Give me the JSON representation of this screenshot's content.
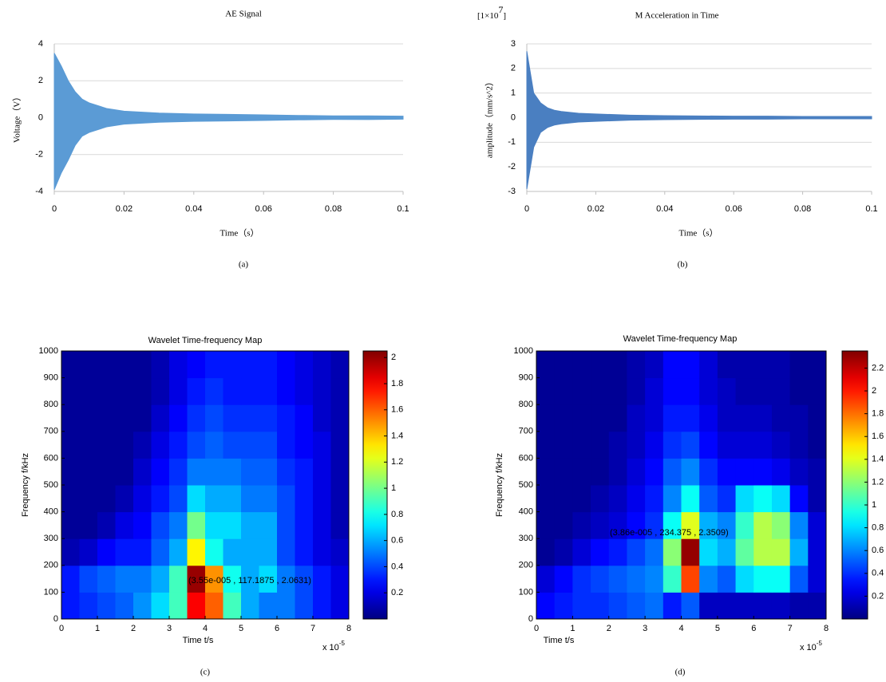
{
  "chart_data": [
    {
      "type": "area",
      "title": "AE Signal",
      "xlabel": "Time（s）",
      "ylabel": "Voltage（V）",
      "caption": "(a)",
      "color": "#5b9bd5",
      "x": [
        0,
        0.002,
        0.004,
        0.006,
        0.008,
        0.01,
        0.015,
        0.02,
        0.03,
        0.04,
        0.05,
        0.06,
        0.07,
        0.08,
        0.09,
        0.1
      ],
      "series": [
        {
          "values": [
            3.5,
            2.8,
            2.0,
            1.4,
            1.0,
            0.8,
            0.5,
            0.35,
            0.25,
            0.2,
            0.18,
            0.15,
            0.12,
            0.1,
            0.1,
            0.08
          ]
        },
        {
          "values": [
            -3.9,
            -3.0,
            -2.3,
            -1.5,
            -1.0,
            -0.8,
            -0.5,
            -0.35,
            -0.25,
            -0.2,
            -0.18,
            -0.15,
            -0.12,
            -0.1,
            -0.1,
            -0.08
          ]
        }
      ],
      "xlim": [
        0,
        0.1
      ],
      "ylim": [
        -4,
        4
      ],
      "xticks": [
        0,
        0.02,
        0.04,
        0.06,
        0.08,
        0.1
      ],
      "yticks": [
        -4,
        -2,
        0,
        2,
        4
      ],
      "grid": true
    },
    {
      "type": "area",
      "title": "M Acceleration  in Time",
      "xlabel": "Time（s）",
      "ylabel": "amplitude（mm/s^2）",
      "caption": "(b)",
      "color": "#4a7fc1",
      "y_multiplier": {
        "base": "[1×10",
        "exponent": "7",
        "suffix": "]"
      },
      "x": [
        0,
        0.002,
        0.004,
        0.006,
        0.008,
        0.01,
        0.015,
        0.02,
        0.03,
        0.04,
        0.05,
        0.06,
        0.07,
        0.08,
        0.09,
        0.1
      ],
      "series": [
        {
          "values": [
            2.7,
            1.0,
            0.6,
            0.4,
            0.3,
            0.25,
            0.18,
            0.15,
            0.1,
            0.08,
            0.07,
            0.06,
            0.06,
            0.05,
            0.05,
            0.05
          ]
        },
        {
          "values": [
            -2.9,
            -1.2,
            -0.6,
            -0.4,
            -0.3,
            -0.25,
            -0.18,
            -0.15,
            -0.1,
            -0.08,
            -0.07,
            -0.06,
            -0.06,
            -0.05,
            -0.05,
            -0.05
          ]
        }
      ],
      "xlim": [
        0,
        0.1
      ],
      "ylim": [
        -3,
        3
      ],
      "xticks": [
        0,
        0.02,
        0.04,
        0.06,
        0.08,
        0.1
      ],
      "yticks": [
        -3,
        -2,
        -1,
        0,
        1,
        2,
        3
      ],
      "grid": true
    },
    {
      "type": "heatmap",
      "title": "Wavelet Time-frequency Map",
      "xlabel": "Time t/s",
      "ylabel": "Frequency f/kHz",
      "caption": "(c)",
      "x_multiplier": {
        "base": "x 10",
        "exponent": "-5"
      },
      "annotation": "(3.55e-005 , 117.1875 , 2.0631)",
      "colormap": "jet",
      "x_bins": [
        0,
        0.5,
        1,
        1.5,
        2,
        2.5,
        3,
        3.5,
        4,
        4.5,
        5,
        5.5,
        6,
        6.5,
        7,
        7.5,
        8
      ],
      "y_bins": [
        0,
        100,
        200,
        300,
        400,
        500,
        600,
        700,
        800,
        900,
        1000
      ],
      "z": [
        [
          0.3,
          0.35,
          0.4,
          0.45,
          0.55,
          0.7,
          0.9,
          1.8,
          1.6,
          0.9,
          0.6,
          0.5,
          0.5,
          0.4,
          0.3,
          0.2
        ],
        [
          0.3,
          0.4,
          0.45,
          0.5,
          0.5,
          0.6,
          0.9,
          2.0,
          1.5,
          0.8,
          0.6,
          0.7,
          0.5,
          0.4,
          0.3,
          0.2
        ],
        [
          0.1,
          0.15,
          0.25,
          0.3,
          0.3,
          0.45,
          0.6,
          1.3,
          0.8,
          0.6,
          0.6,
          0.6,
          0.4,
          0.3,
          0.2,
          0.15
        ],
        [
          0.05,
          0.05,
          0.1,
          0.2,
          0.25,
          0.4,
          0.5,
          1.0,
          0.7,
          0.7,
          0.6,
          0.6,
          0.4,
          0.3,
          0.2,
          0.1
        ],
        [
          0.05,
          0.05,
          0.05,
          0.1,
          0.2,
          0.3,
          0.4,
          0.7,
          0.6,
          0.6,
          0.5,
          0.5,
          0.4,
          0.3,
          0.2,
          0.1
        ],
        [
          0.05,
          0.05,
          0.05,
          0.05,
          0.15,
          0.25,
          0.35,
          0.5,
          0.5,
          0.5,
          0.45,
          0.45,
          0.35,
          0.3,
          0.2,
          0.1
        ],
        [
          0.05,
          0.05,
          0.05,
          0.05,
          0.1,
          0.2,
          0.3,
          0.4,
          0.45,
          0.4,
          0.4,
          0.4,
          0.3,
          0.25,
          0.2,
          0.1
        ],
        [
          0.05,
          0.05,
          0.05,
          0.05,
          0.05,
          0.15,
          0.25,
          0.35,
          0.4,
          0.35,
          0.35,
          0.35,
          0.3,
          0.25,
          0.15,
          0.1
        ],
        [
          0.05,
          0.05,
          0.05,
          0.05,
          0.05,
          0.1,
          0.2,
          0.3,
          0.35,
          0.3,
          0.3,
          0.3,
          0.25,
          0.2,
          0.15,
          0.1
        ],
        [
          0.05,
          0.05,
          0.05,
          0.05,
          0.05,
          0.1,
          0.2,
          0.25,
          0.3,
          0.3,
          0.3,
          0.3,
          0.25,
          0.2,
          0.15,
          0.1
        ]
      ],
      "xlim": [
        0,
        8
      ],
      "ylim": [
        0,
        1000
      ],
      "xticks": [
        0,
        1,
        2,
        3,
        4,
        5,
        6,
        7,
        8
      ],
      "yticks": [
        0,
        100,
        200,
        300,
        400,
        500,
        600,
        700,
        800,
        900,
        1000
      ],
      "clim": [
        0,
        2.05
      ],
      "colorbar_ticks": [
        0.2,
        0.4,
        0.6,
        0.8,
        1,
        1.2,
        1.4,
        1.6,
        1.8,
        2
      ]
    },
    {
      "type": "heatmap",
      "title": "Wavelet Time-frequency Map",
      "xlabel": "Time t/s",
      "ylabel": "Frequency f/kHz",
      "caption": "(d)",
      "x_multiplier": {
        "base": "x 10",
        "exponent": "-5"
      },
      "annotation": "(3.86e-005 , 234.375 , 2.3509)",
      "colormap": "jet",
      "x_bins": [
        0,
        0.5,
        1,
        1.5,
        2,
        2.5,
        3,
        3.5,
        4,
        4.5,
        5,
        5.5,
        6,
        6.5,
        7,
        7.5,
        8
      ],
      "y_bins": [
        0,
        100,
        200,
        300,
        400,
        500,
        600,
        700,
        800,
        900,
        1000
      ],
      "z": [
        [
          0.3,
          0.35,
          0.4,
          0.4,
          0.45,
          0.5,
          0.55,
          0.35,
          0.5,
          0.15,
          0.15,
          0.15,
          0.15,
          0.15,
          0.1,
          0.1
        ],
        [
          0.2,
          0.3,
          0.4,
          0.45,
          0.5,
          0.55,
          0.6,
          1.0,
          1.9,
          0.6,
          0.5,
          0.8,
          0.9,
          0.9,
          0.5,
          0.2
        ],
        [
          0.05,
          0.1,
          0.2,
          0.3,
          0.35,
          0.45,
          0.55,
          1.2,
          2.3,
          0.8,
          0.7,
          1.1,
          1.3,
          1.3,
          0.7,
          0.2
        ],
        [
          0.05,
          0.05,
          0.1,
          0.15,
          0.2,
          0.3,
          0.4,
          0.9,
          1.4,
          0.7,
          0.6,
          1.0,
          1.3,
          1.2,
          0.6,
          0.2
        ],
        [
          0.05,
          0.05,
          0.05,
          0.1,
          0.15,
          0.25,
          0.35,
          0.6,
          0.9,
          0.5,
          0.4,
          0.8,
          0.9,
          0.8,
          0.3,
          0.1
        ],
        [
          0.05,
          0.05,
          0.05,
          0.05,
          0.1,
          0.2,
          0.3,
          0.5,
          0.6,
          0.4,
          0.3,
          0.3,
          0.3,
          0.25,
          0.15,
          0.1
        ],
        [
          0.05,
          0.05,
          0.05,
          0.05,
          0.1,
          0.15,
          0.25,
          0.4,
          0.45,
          0.3,
          0.2,
          0.2,
          0.2,
          0.15,
          0.1,
          0.05
        ],
        [
          0.05,
          0.05,
          0.05,
          0.05,
          0.05,
          0.15,
          0.2,
          0.35,
          0.35,
          0.25,
          0.15,
          0.15,
          0.15,
          0.1,
          0.1,
          0.05
        ],
        [
          0.05,
          0.05,
          0.05,
          0.05,
          0.05,
          0.1,
          0.2,
          0.3,
          0.3,
          0.2,
          0.15,
          0.1,
          0.1,
          0.1,
          0.05,
          0.05
        ],
        [
          0.05,
          0.05,
          0.05,
          0.05,
          0.05,
          0.1,
          0.15,
          0.3,
          0.3,
          0.2,
          0.1,
          0.1,
          0.1,
          0.1,
          0.05,
          0.05
        ]
      ],
      "xlim": [
        0,
        8
      ],
      "ylim": [
        0,
        1000
      ],
      "xticks": [
        0,
        1,
        2,
        3,
        4,
        5,
        6,
        7,
        8
      ],
      "yticks": [
        0,
        100,
        200,
        300,
        400,
        500,
        600,
        700,
        800,
        900,
        1000
      ],
      "clim": [
        0,
        2.35
      ],
      "colorbar_ticks": [
        0.2,
        0.4,
        0.6,
        0.8,
        1,
        1.2,
        1.4,
        1.6,
        1.8,
        2,
        2.2
      ]
    }
  ]
}
